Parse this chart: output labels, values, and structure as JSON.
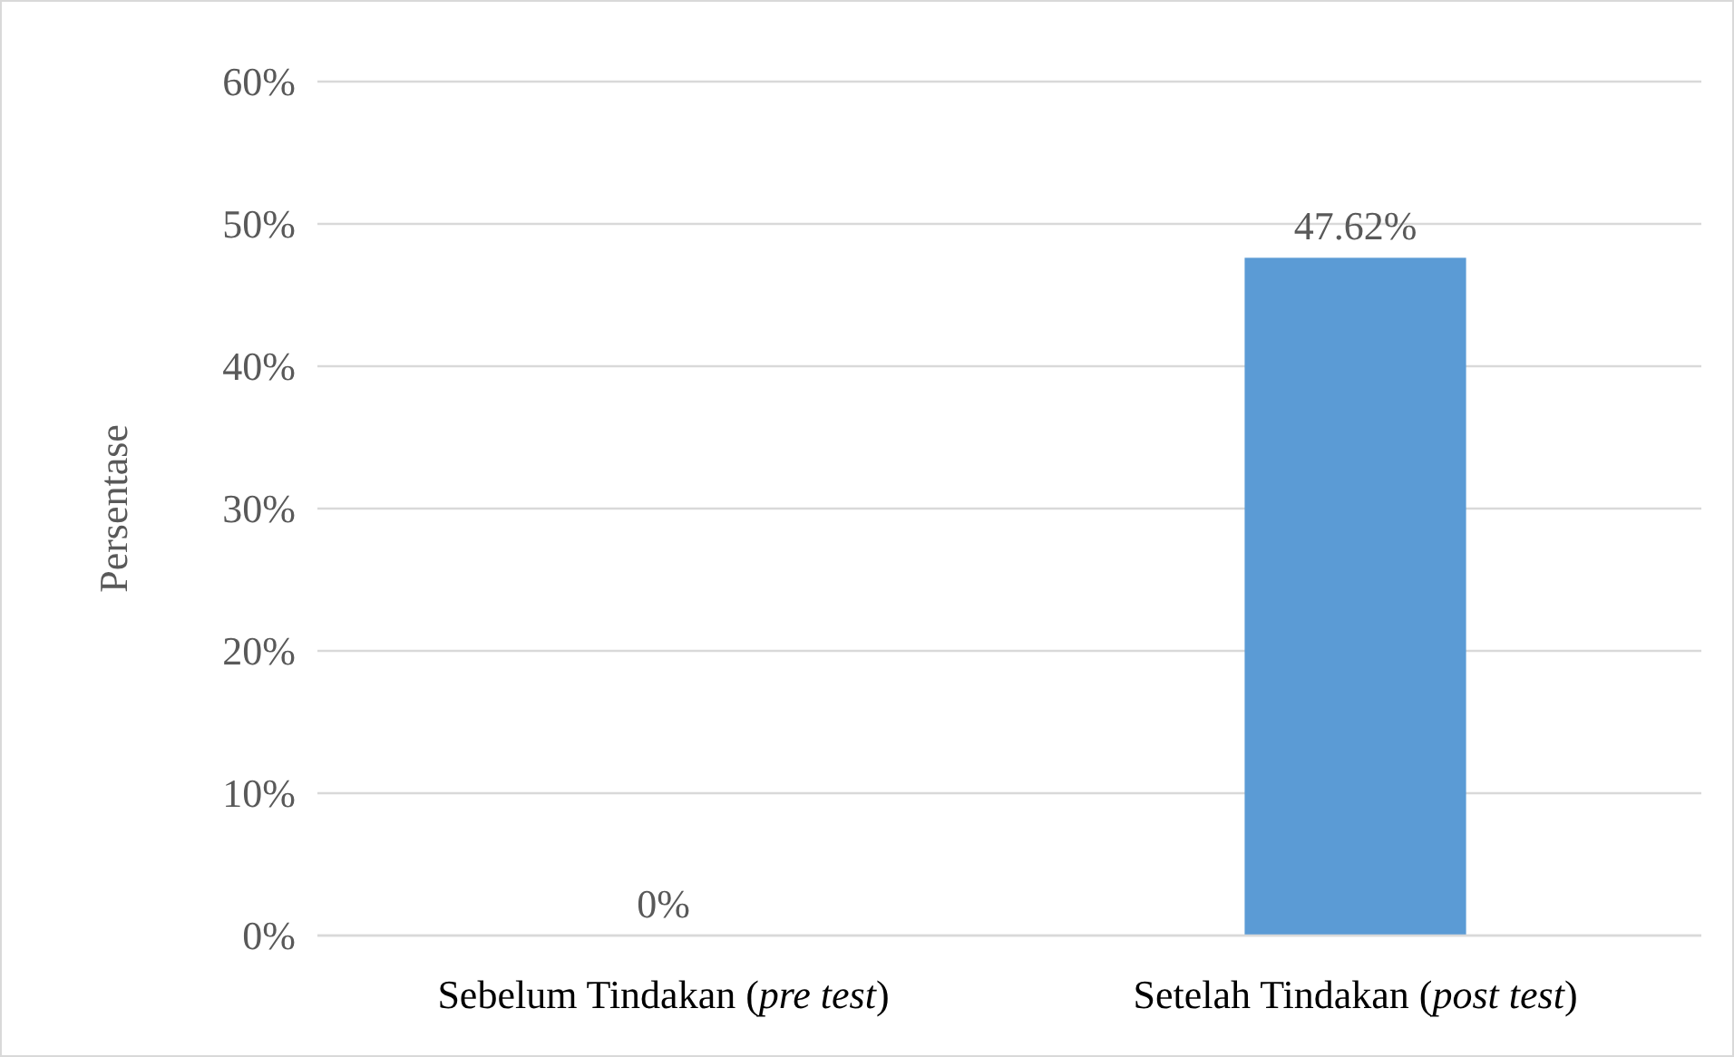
{
  "chart_data": {
    "type": "bar",
    "ylabel": "Persentase",
    "categories": [
      "Sebelum Tindakan (pre test)",
      "Setelah Tindakan (post test)"
    ],
    "values": [
      0,
      47.62
    ],
    "color": "#5b9bd5",
    "value_labels": [
      "0%",
      "47.62%"
    ],
    "ylim": [
      0,
      60
    ],
    "yticks": [
      {
        "value": 0,
        "label": "0%"
      },
      {
        "value": 10,
        "label": "10%"
      },
      {
        "value": 20,
        "label": "20%"
      },
      {
        "value": 30,
        "label": "30%"
      },
      {
        "value": 40,
        "label": "40%"
      },
      {
        "value": 50,
        "label": "50%"
      },
      {
        "value": 60,
        "label": "60%"
      }
    ],
    "grid": "y"
  }
}
